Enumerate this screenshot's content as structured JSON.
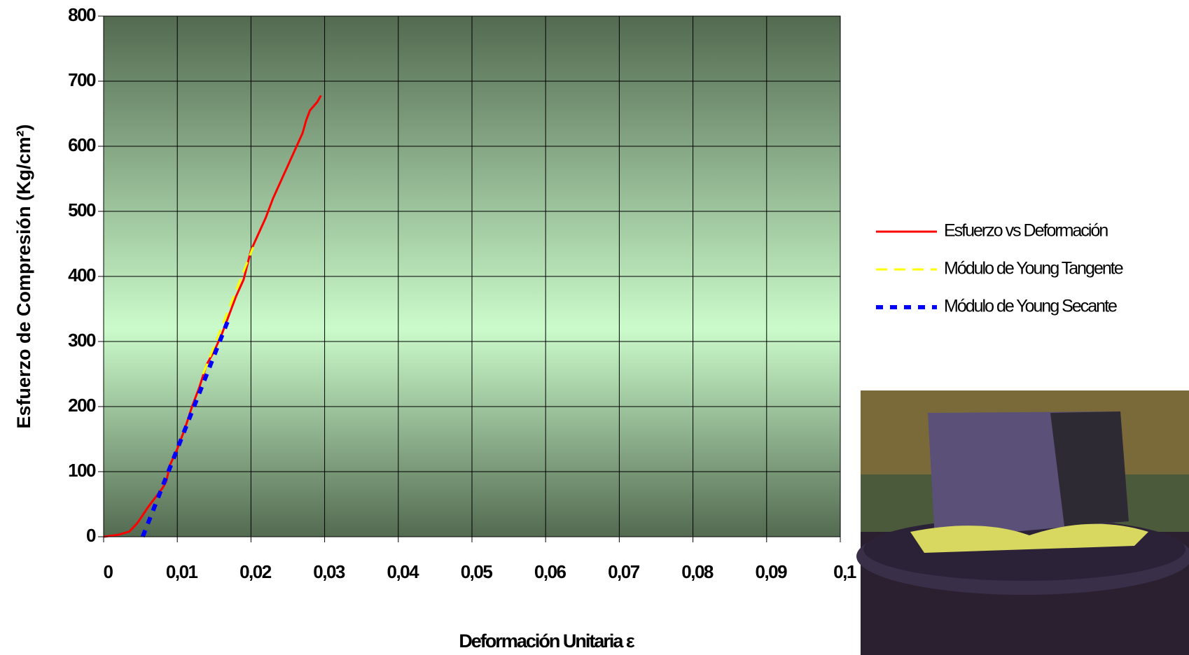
{
  "chart_data": {
    "type": "line",
    "x_label": "Deformación Unitaria ε",
    "y_label": "Esfuerzo de Compresión (Kg/cm²)",
    "xlim": [
      0,
      0.1
    ],
    "ylim": [
      0,
      800
    ],
    "xticks": [
      0,
      {
        "value": 0.01,
        "label": "0,01"
      },
      {
        "value": 0.02,
        "label": "0,02"
      },
      {
        "value": 0.03,
        "label": "0,03"
      },
      {
        "value": 0.04,
        "label": "0,04"
      },
      {
        "value": 0.05,
        "label": "0,05"
      },
      {
        "value": 0.06,
        "label": "0,06"
      },
      {
        "value": 0.07,
        "label": "0,07"
      },
      {
        "value": 0.08,
        "label": "0,08"
      },
      {
        "value": 0.09,
        "label": "0,09"
      },
      {
        "value": 0.1,
        "label": "0,1"
      }
    ],
    "yticks": [
      0,
      100,
      200,
      300,
      400,
      500,
      600,
      700,
      800
    ],
    "grid": true,
    "series": [
      {
        "name": "Esfuerzo vs Deformación",
        "color": "#ff0000",
        "dash": "solid",
        "x": [
          0,
          0.002,
          0.0035,
          0.0045,
          0.005,
          0.006,
          0.007,
          0.008,
          0.0085,
          0.009,
          0.01,
          0.011,
          0.012,
          0.013,
          0.014,
          0.015,
          0.016,
          0.017,
          0.018,
          0.019,
          0.02,
          0.021,
          0.022,
          0.023,
          0.024,
          0.025,
          0.026,
          0.027,
          0.0275,
          0.028,
          0.029,
          0.0295
        ],
        "values": [
          0,
          3,
          8,
          20,
          28,
          45,
          60,
          75,
          85,
          110,
          135,
          165,
          200,
          230,
          265,
          285,
          310,
          340,
          370,
          395,
          440,
          465,
          490,
          520,
          545,
          570,
          595,
          620,
          640,
          655,
          668,
          678
        ]
      },
      {
        "name": "Módulo de Young Tangente",
        "color": "#ffff00",
        "dash": "dashed",
        "x": [
          0.0135,
          0.0203
        ],
        "values": [
          250,
          445
        ]
      },
      {
        "name": "Módulo de Young Secante",
        "color": "#0000ff",
        "dash": "dotted",
        "x": [
          0.0053,
          0.0168
        ],
        "values": [
          0,
          330
        ]
      }
    ]
  }
}
